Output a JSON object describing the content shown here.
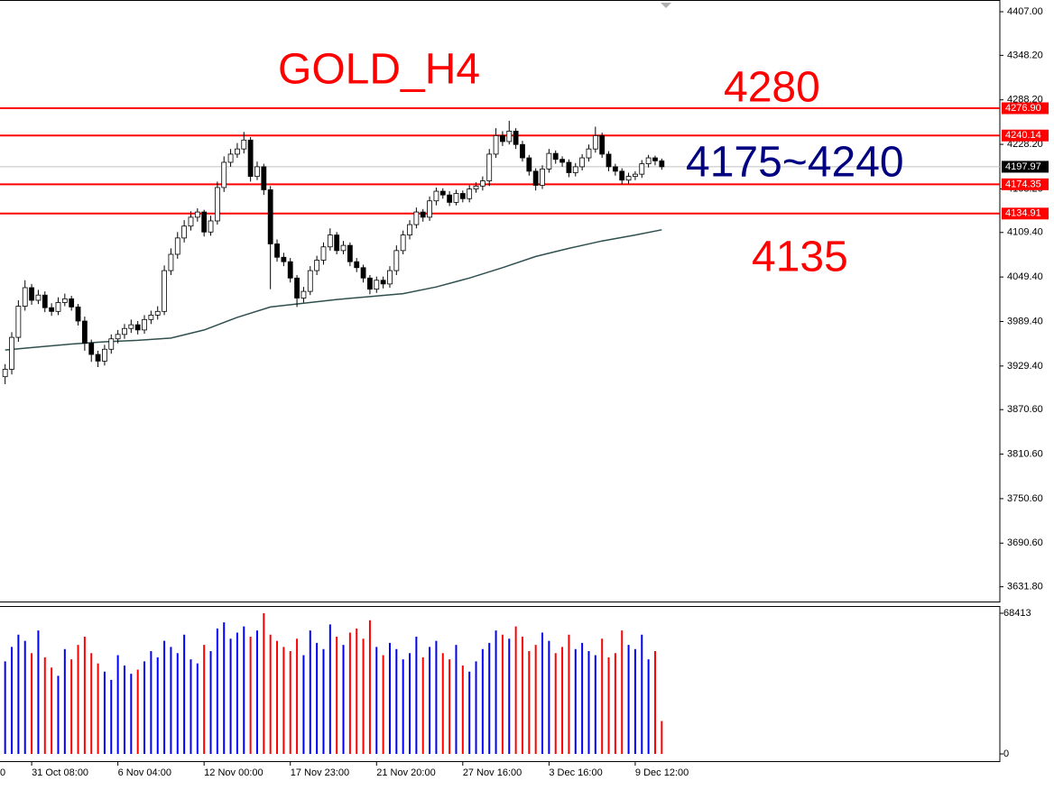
{
  "chart_data": {
    "type": "candlestick",
    "title": "GOLD_H4",
    "annotations": [
      "4280",
      "4175~4240",
      "4135"
    ],
    "open": [
      3915,
      3925,
      3968,
      4010,
      4035,
      4018,
      4025,
      4008,
      4003,
      4015,
      4020,
      4009,
      3990,
      3960,
      3945,
      3936,
      3952,
      3966,
      3972,
      3980,
      3985,
      3978,
      3992,
      3998,
      4003,
      4058,
      4080,
      4102,
      4118,
      4130,
      4137,
      4110,
      4125,
      4170,
      4204,
      4215,
      4222,
      4234,
      4185,
      4198,
      4167,
      4094,
      4076,
      4070,
      4048,
      4021,
      4030,
      4058,
      4072,
      4090,
      4106,
      4085,
      4092,
      4070,
      4062,
      4048,
      4033,
      4045,
      4040,
      4058,
      4085,
      4106,
      4120,
      4137,
      4130,
      4152,
      4165,
      4160,
      4150,
      4162,
      4155,
      4168,
      4172,
      4179,
      4215,
      4240,
      4232,
      4246,
      4228,
      4210,
      4192,
      4173,
      4195,
      4216,
      4208,
      4204,
      4190,
      4198,
      4210,
      4222,
      4240,
      4215,
      4198,
      4192,
      4180,
      4185,
      4188,
      4202,
      4210,
      4206
    ],
    "high": [
      3932,
      3975,
      4018,
      4045,
      4040,
      4032,
      4030,
      4014,
      4022,
      4027,
      4024,
      4013,
      3996,
      3965,
      3950,
      3958,
      3972,
      3978,
      3986,
      3992,
      3990,
      3998,
      4004,
      4010,
      4065,
      4088,
      4110,
      4126,
      4138,
      4142,
      4140,
      4132,
      4178,
      4212,
      4222,
      4230,
      4245,
      4238,
      4205,
      4202,
      4172,
      4100,
      4082,
      4075,
      4052,
      4036,
      4064,
      4078,
      4096,
      4115,
      4110,
      4098,
      4096,
      4075,
      4066,
      4052,
      4050,
      4050,
      4064,
      4092,
      4112,
      4126,
      4143,
      4141,
      4158,
      4170,
      4169,
      4165,
      4167,
      4166,
      4173,
      4177,
      4185,
      4222,
      4250,
      4246,
      4260,
      4250,
      4233,
      4214,
      4196,
      4200,
      4222,
      4220,
      4212,
      4208,
      4203,
      4215,
      4228,
      4252,
      4244,
      4219,
      4202,
      4196,
      4190,
      4192,
      4207,
      4214,
      4213,
      4209
    ],
    "low": [
      3905,
      3918,
      3962,
      4004,
      4012,
      4013,
      4002,
      3997,
      3998,
      4010,
      4004,
      3984,
      3950,
      3935,
      3928,
      3930,
      3946,
      3960,
      3966,
      3974,
      3972,
      3973,
      3986,
      3992,
      3998,
      4052,
      4074,
      4096,
      4112,
      4124,
      4104,
      4105,
      4120,
      4164,
      4198,
      4210,
      4216,
      4178,
      4180,
      4160,
      4033,
      4070,
      4064,
      4042,
      4009,
      4015,
      4025,
      4052,
      4066,
      4085,
      4080,
      4080,
      4064,
      4056,
      4042,
      4026,
      4028,
      4034,
      4035,
      4052,
      4080,
      4100,
      4115,
      4124,
      4125,
      4146,
      4155,
      4145,
      4146,
      4150,
      4150,
      4163,
      4166,
      4172,
      4210,
      4226,
      4228,
      4222,
      4205,
      4186,
      4166,
      4168,
      4190,
      4202,
      4198,
      4184,
      4185,
      4193,
      4205,
      4217,
      4210,
      4192,
      4186,
      4174,
      4175,
      4180,
      4183,
      4197,
      4200,
      4194
    ],
    "close": [
      3925,
      3968,
      4010,
      4035,
      4018,
      4025,
      4008,
      4003,
      4015,
      4020,
      4009,
      3990,
      3960,
      3945,
      3936,
      3952,
      3966,
      3972,
      3980,
      3985,
      3978,
      3992,
      3998,
      4003,
      4058,
      4080,
      4102,
      4118,
      4130,
      4137,
      4110,
      4125,
      4170,
      4204,
      4215,
      4222,
      4234,
      4185,
      4198,
      4167,
      4094,
      4076,
      4070,
      4048,
      4021,
      4030,
      4058,
      4072,
      4090,
      4106,
      4085,
      4092,
      4070,
      4062,
      4048,
      4033,
      4045,
      4040,
      4058,
      4085,
      4106,
      4120,
      4137,
      4130,
      4152,
      4165,
      4160,
      4150,
      4162,
      4155,
      4168,
      4172,
      4179,
      4215,
      4240,
      4232,
      4246,
      4228,
      4210,
      4192,
      4173,
      4195,
      4216,
      4208,
      4204,
      4190,
      4198,
      4210,
      4222,
      4240,
      4215,
      4198,
      4192,
      4180,
      4185,
      4188,
      4202,
      4210,
      4206,
      4198
    ],
    "volume": [
      45000,
      52000,
      58000,
      55000,
      49000,
      60000,
      47000,
      42000,
      38000,
      51000,
      46000,
      53000,
      57000,
      49000,
      44000,
      40000,
      36000,
      48000,
      43000,
      39000,
      41000,
      45000,
      50000,
      47000,
      55000,
      52000,
      49000,
      58000,
      46000,
      44000,
      53000,
      50000,
      61000,
      64000,
      56000,
      59000,
      62000,
      57000,
      60000,
      68413,
      58000,
      55000,
      52000,
      50000,
      56000,
      48000,
      60000,
      54000,
      51000,
      63000,
      57000,
      53000,
      59000,
      61000,
      56000,
      65000,
      52000,
      48000,
      54000,
      51000,
      46000,
      49000,
      57000,
      47000,
      52000,
      55000,
      49000,
      46000,
      53000,
      43000,
      40000,
      45000,
      51000,
      54000,
      60000,
      58000,
      56000,
      62000,
      57000,
      50000,
      53000,
      59000,
      55000,
      49000,
      52000,
      58000,
      51000,
      54000,
      50000,
      48000,
      56000,
      47000,
      49000,
      60000,
      53000,
      51000,
      58000,
      46000,
      50000,
      16000
    ],
    "ma": {
      "x": [
        0,
        5,
        10,
        15,
        20,
        25,
        30,
        35,
        40,
        45,
        50,
        55,
        60,
        65,
        70,
        75,
        80,
        85,
        90,
        95,
        99
      ],
      "values": [
        3951,
        3955,
        3959,
        3962,
        3964,
        3967,
        3978,
        3995,
        4009,
        4014,
        4019,
        4023,
        4027,
        4036,
        4048,
        4062,
        4077,
        4088,
        4098,
        4106,
        4113
      ],
      "color": "#2f4f4f"
    },
    "up_color": "#0000ff",
    "down_color": "#ff0000",
    "ylim": [
      3610.7,
      4422.8
    ],
    "yticks": [
      {
        "value": 4407,
        "label": "4407.00"
      },
      {
        "value": 4348.2,
        "label": "4348.20"
      },
      {
        "value": 4288.2,
        "label": "4288.20"
      },
      {
        "value": 4228.2,
        "label": "4228.20"
      },
      {
        "value": 4168.2,
        "label": "4168.20"
      },
      {
        "value": 4109.4,
        "label": "4109.40"
      },
      {
        "value": 4049.4,
        "label": "4049.40"
      },
      {
        "value": 3989.4,
        "label": "3989.40"
      },
      {
        "value": 3929.4,
        "label": "3929.40"
      },
      {
        "value": 3870.6,
        "label": "3870.60"
      },
      {
        "value": 3810.6,
        "label": "3810.60"
      },
      {
        "value": 3750.6,
        "label": "3750.60"
      },
      {
        "value": 3690.6,
        "label": "3690.60"
      },
      {
        "value": 3631.8,
        "label": "3631.80"
      }
    ],
    "levels": [
      {
        "value": 4276.9,
        "label": "4276.90"
      },
      {
        "value": 4240.14,
        "label": "4240.14"
      },
      {
        "value": 4174.35,
        "label": "4174.35"
      },
      {
        "value": 4134.91,
        "label": "4134.91"
      }
    ],
    "level_color": "#ff0000",
    "current": {
      "value": 4197.97,
      "label": "4197.97"
    },
    "vlim": [
      0,
      68413
    ],
    "vticks": [
      68413,
      0
    ],
    "xticks": [
      {
        "value": -1,
        "label": "0"
      },
      {
        "value": 4,
        "label": "31 Oct 08:00"
      },
      {
        "value": 17,
        "label": "6 Nov 04:00"
      },
      {
        "value": 30,
        "label": "12 Nov 00:00"
      },
      {
        "value": 43,
        "label": "17 Nov 23:00"
      },
      {
        "value": 56,
        "label": "21 Nov 20:00"
      },
      {
        "value": 69,
        "label": "27 Nov 16:00"
      },
      {
        "value": 82,
        "label": "3 Dec 16:00"
      },
      {
        "value": 95,
        "label": "9 Dec 12:00"
      }
    ]
  }
}
